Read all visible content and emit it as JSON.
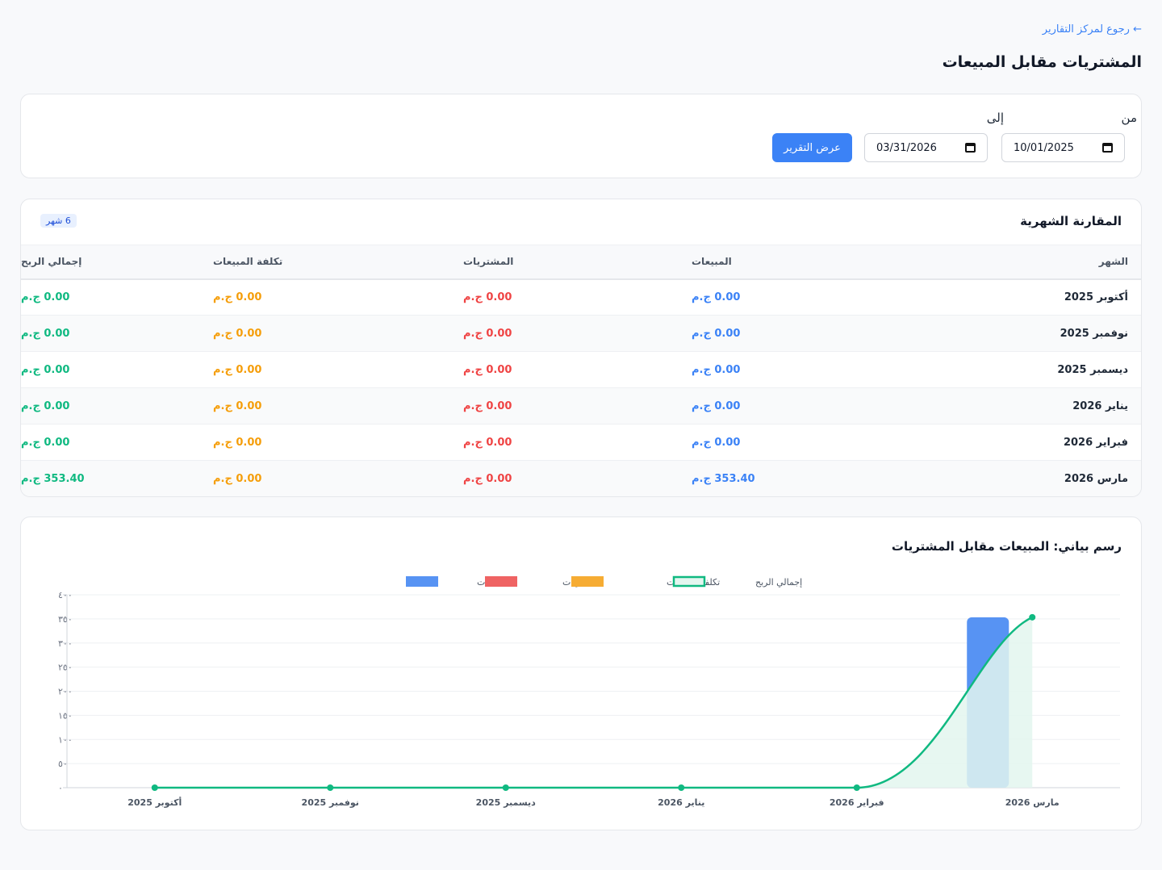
{
  "back_link": "← رجوع لمركز التقارير",
  "page_title": "المشتريات مقابل المبيعات",
  "filter": {
    "from_label": "من",
    "to_label": "إلى",
    "from_value": "10/01/2025",
    "to_value": "03/31/2026",
    "submit_label": "عرض التقرير"
  },
  "table": {
    "title": "المقارنة الشهرية",
    "badge": "6 شهر",
    "headers": {
      "month": "الشهر",
      "sales": "المبيعات",
      "purchases": "المشتريات",
      "cost": "تكلفة المبيعات",
      "profit": "إجمالي الربح"
    },
    "rows": [
      {
        "month": "أكتوبر 2025",
        "sales": "0.00 ج.م",
        "purchases": "0.00 ج.م",
        "cost": "0.00 ج.م",
        "profit": "0.00 ج.م"
      },
      {
        "month": "نوفمبر 2025",
        "sales": "0.00 ج.م",
        "purchases": "0.00 ج.م",
        "cost": "0.00 ج.م",
        "profit": "0.00 ج.م"
      },
      {
        "month": "ديسمبر 2025",
        "sales": "0.00 ج.م",
        "purchases": "0.00 ج.م",
        "cost": "0.00 ج.م",
        "profit": "0.00 ج.م"
      },
      {
        "month": "يناير 2026",
        "sales": "0.00 ج.م",
        "purchases": "0.00 ج.م",
        "cost": "0.00 ج.م",
        "profit": "0.00 ج.م"
      },
      {
        "month": "فبراير 2026",
        "sales": "0.00 ج.م",
        "purchases": "0.00 ج.م",
        "cost": "0.00 ج.م",
        "profit": "0.00 ج.م"
      },
      {
        "month": "مارس 2026",
        "sales": "353.40 ج.م",
        "purchases": "0.00 ج.م",
        "cost": "0.00 ج.م",
        "profit": "353.40 ج.م"
      }
    ]
  },
  "colors": {
    "sales": "#5793f3",
    "purchases": "#ef6363",
    "cost": "#f6ac33",
    "profit": "#10b981",
    "profit_fill": "#e3f6ef"
  },
  "chart_data": {
    "type": "bar",
    "title": "رسم بياني: المبيعات مقابل المشتريات",
    "categories": [
      "أكتوبر 2025",
      "نوفمبر 2025",
      "ديسمبر 2025",
      "يناير 2026",
      "فبراير 2026",
      "مارس 2026"
    ],
    "series": [
      {
        "name": "المبيعات",
        "type": "bar",
        "values": [
          0,
          0,
          0,
          0,
          0,
          353.4
        ]
      },
      {
        "name": "المشتريات",
        "type": "bar",
        "values": [
          0,
          0,
          0,
          0,
          0,
          0
        ]
      },
      {
        "name": "تكلفة المبيعات",
        "type": "bar",
        "values": [
          0,
          0,
          0,
          0,
          0,
          0
        ]
      },
      {
        "name": "إجمالي الربح",
        "type": "line",
        "values": [
          0,
          0,
          0,
          0,
          0,
          353.4
        ]
      }
    ],
    "y_ticks": [
      "٠",
      "٥٠",
      "١٠٠",
      "١٥٠",
      "٢٠٠",
      "٢٥٠",
      "٣٠٠",
      "٣٥٠",
      "٤٠٠"
    ],
    "ylim": [
      0,
      400
    ],
    "legend_position": "top",
    "grid": true
  }
}
